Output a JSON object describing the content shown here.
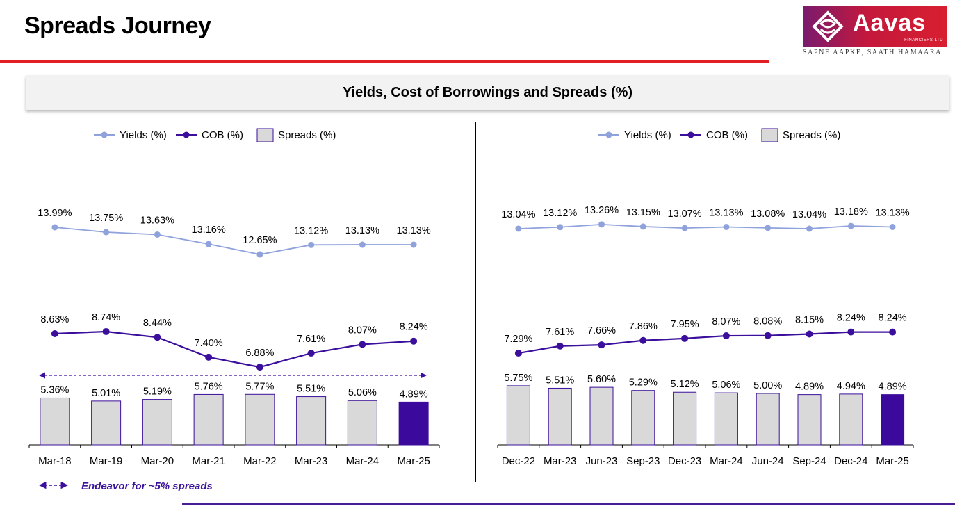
{
  "page": {
    "title": "Spreads Journey",
    "banner": "Yields, Cost of Borrowings and Spreads (%)",
    "footnote": "Endeavor for ~5% spreads"
  },
  "logo": {
    "name": "Aavas",
    "subtitle": "FINANCIERS LTD",
    "tagline": "SAPNE AAPKE, SAATH HAMAARA"
  },
  "legend": {
    "yields": "Yields (%)",
    "cob": "COB (%)",
    "spreads": "Spreads (%)"
  },
  "colors": {
    "yields": "#8fa2dc",
    "cob": "#3b0e9c",
    "spreads_fill": "#d9d9d9",
    "spreads_border": "#3b0e9c",
    "highlight_bar": "#3b0a9c",
    "accent_red": "#e31e24"
  },
  "chart_data": [
    {
      "type": "bar",
      "categories": [
        "Mar-18",
        "Mar-19",
        "Mar-20",
        "Mar-21",
        "Mar-22",
        "Mar-23",
        "Mar-24",
        "Mar-25"
      ],
      "series": [
        {
          "name": "Yields (%)",
          "type": "line",
          "values": [
            13.99,
            13.75,
            13.63,
            13.16,
            12.65,
            13.12,
            13.13,
            13.13
          ],
          "labels": [
            "13.99%",
            "13.75%",
            "13.63%",
            "13.16%",
            "12.65%",
            "13.12%",
            "13.13%",
            "13.13%"
          ]
        },
        {
          "name": "COB (%)",
          "type": "line",
          "values": [
            8.63,
            8.74,
            8.44,
            7.4,
            6.88,
            7.61,
            8.07,
            8.24
          ],
          "labels": [
            "8.63%",
            "8.74%",
            "8.44%",
            "7.40%",
            "6.88%",
            "7.61%",
            "8.07%",
            "8.24%"
          ]
        },
        {
          "name": "Spreads (%)",
          "type": "bar",
          "values": [
            5.36,
            5.01,
            5.19,
            5.76,
            5.77,
            5.51,
            5.06,
            4.89
          ],
          "labels": [
            "5.36%",
            "5.01%",
            "5.19%",
            "5.76%",
            "5.77%",
            "5.51%",
            "5.06%",
            "4.89%"
          ]
        }
      ],
      "highlight_last_bar": true,
      "reference_arrow": "Endeavor for ~5% spreads",
      "legend": "top"
    },
    {
      "type": "bar",
      "categories": [
        "Dec-22",
        "Mar-23",
        "Jun-23",
        "Sep-23",
        "Dec-23",
        "Mar-24",
        "Jun-24",
        "Sep-24",
        "Dec-24",
        "Mar-25"
      ],
      "series": [
        {
          "name": "Yields (%)",
          "type": "line",
          "values": [
            13.04,
            13.12,
            13.26,
            13.15,
            13.07,
            13.13,
            13.08,
            13.04,
            13.18,
            13.13
          ],
          "labels": [
            "13.04%",
            "13.12%",
            "13.26%",
            "13.15%",
            "13.07%",
            "13.13%",
            "13.08%",
            "13.04%",
            "13.18%",
            "13.13%"
          ]
        },
        {
          "name": "COB (%)",
          "type": "line",
          "values": [
            7.29,
            7.61,
            7.66,
            7.86,
            7.95,
            8.07,
            8.08,
            8.15,
            8.24,
            8.24
          ],
          "labels": [
            "7.29%",
            "7.61%",
            "7.66%",
            "7.86%",
            "7.95%",
            "8.07%",
            "8.08%",
            "8.15%",
            "8.24%",
            "8.24%"
          ]
        },
        {
          "name": "Spreads (%)",
          "type": "bar",
          "values": [
            5.75,
            5.51,
            5.6,
            5.29,
            5.12,
            5.06,
            5.0,
            4.89,
            4.94,
            4.89
          ],
          "labels": [
            "5.75%",
            "5.51%",
            "5.60%",
            "5.29%",
            "5.12%",
            "5.06%",
            "5.00%",
            "4.89%",
            "4.94%",
            "4.89%"
          ]
        }
      ],
      "highlight_last_bar": true,
      "legend": "top"
    }
  ]
}
